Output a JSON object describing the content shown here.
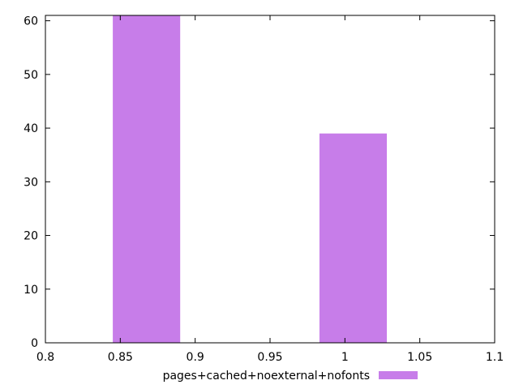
{
  "chart_data": {
    "type": "bar",
    "title": "",
    "xlabel": "",
    "ylabel": "",
    "xlim": [
      0.8,
      1.1
    ],
    "ylim": [
      0,
      61
    ],
    "x_ticks": [
      0.8,
      0.85,
      0.9,
      0.95,
      1,
      1.05,
      1.1
    ],
    "x_tick_labels": [
      "0.8",
      "0.85",
      "0.9",
      "0.95",
      "1",
      "1.05",
      "1.1"
    ],
    "y_ticks": [
      0,
      10,
      20,
      30,
      40,
      50,
      60
    ],
    "y_tick_labels": [
      "0",
      "10",
      "20",
      "30",
      "40",
      "50",
      "60"
    ],
    "grid": false,
    "legend_position": "bottom",
    "series": [
      {
        "name": "pages+cached+noexternal+nofonts",
        "color": "#c77de9",
        "bars": [
          {
            "x_start": 0.845,
            "x_end": 0.89,
            "value": 61
          },
          {
            "x_start": 0.983,
            "x_end": 1.028,
            "value": 39
          }
        ]
      }
    ]
  }
}
